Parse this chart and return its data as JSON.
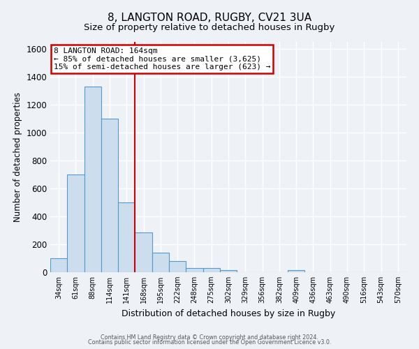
{
  "title": "8, LANGTON ROAD, RUGBY, CV21 3UA",
  "subtitle": "Size of property relative to detached houses in Rugby",
  "xlabel": "Distribution of detached houses by size in Rugby",
  "ylabel": "Number of detached properties",
  "bin_labels": [
    "34sqm",
    "61sqm",
    "88sqm",
    "114sqm",
    "141sqm",
    "168sqm",
    "195sqm",
    "222sqm",
    "248sqm",
    "275sqm",
    "302sqm",
    "329sqm",
    "356sqm",
    "382sqm",
    "409sqm",
    "436sqm",
    "463sqm",
    "490sqm",
    "516sqm",
    "543sqm",
    "570sqm"
  ],
  "bar_values": [
    100,
    700,
    1330,
    1100,
    500,
    285,
    140,
    80,
    30,
    30,
    15,
    0,
    0,
    0,
    15,
    0,
    0,
    0,
    0,
    0,
    0
  ],
  "bar_color": "#ccdded",
  "bar_edge_color": "#5599cc",
  "vline_x_idx": 5,
  "annotation_line1": "8 LANGTON ROAD: 164sqm",
  "annotation_line2": "← 85% of detached houses are smaller (3,625)",
  "annotation_line3": "15% of semi-detached houses are larger (623) →",
  "annotation_box_color": "#ffffff",
  "annotation_box_edge": "#cc0000",
  "vline_color": "#cc0000",
  "ylim": [
    0,
    1650
  ],
  "yticks": [
    0,
    200,
    400,
    600,
    800,
    1000,
    1200,
    1400,
    1600
  ],
  "footer1": "Contains HM Land Registry data © Crown copyright and database right 2024.",
  "footer2": "Contains public sector information licensed under the Open Government Licence v3.0.",
  "bg_color": "#eef2f7",
  "plot_bg_color": "#eef2f7",
  "grid_color": "#ffffff",
  "title_fontsize": 11,
  "subtitle_fontsize": 9.5
}
